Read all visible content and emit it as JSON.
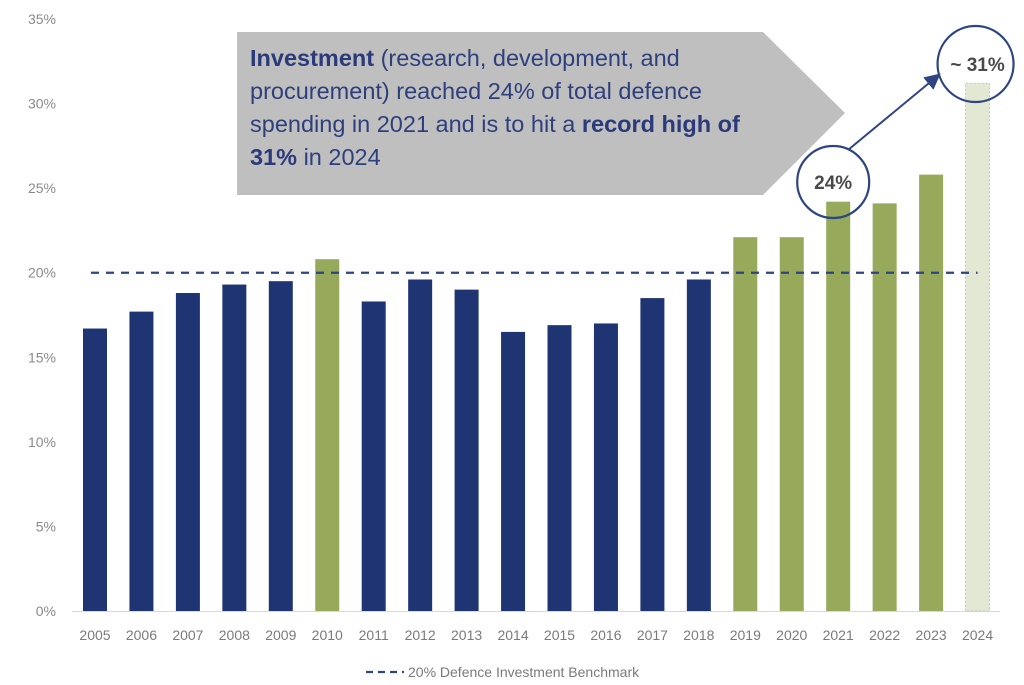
{
  "chart_data": {
    "type": "bar",
    "title": "",
    "xlabel": "",
    "ylabel": "",
    "ylim": [
      0,
      35
    ],
    "y_ticks": [
      "0%",
      "5%",
      "10%",
      "15%",
      "20%",
      "25%",
      "30%",
      "35%"
    ],
    "y_tick_values": [
      0,
      5,
      10,
      15,
      20,
      25,
      30,
      35
    ],
    "categories": [
      "2005",
      "2006",
      "2007",
      "2008",
      "2009",
      "2010",
      "2011",
      "2012",
      "2013",
      "2014",
      "2015",
      "2016",
      "2017",
      "2018",
      "2019",
      "2020",
      "2021",
      "2022",
      "2023",
      "2024"
    ],
    "values": [
      16.7,
      17.7,
      18.8,
      19.3,
      19.5,
      20.8,
      18.3,
      19.6,
      19.0,
      16.5,
      16.9,
      17.0,
      18.5,
      19.6,
      22.1,
      22.1,
      24.2,
      24.1,
      25.8,
      31.2
    ],
    "bar_status": [
      "below",
      "below",
      "below",
      "below",
      "below",
      "above",
      "below",
      "below",
      "below",
      "below",
      "below",
      "below",
      "below",
      "below",
      "above",
      "above",
      "above",
      "above",
      "above",
      "estimate"
    ],
    "colors": {
      "below": "#1f3473",
      "above": "#97a95a",
      "estimate": "#e3e8d3",
      "benchmark": "#2e4483",
      "annotation": "#2e4483"
    },
    "benchmark": {
      "value": 20,
      "label": "20% Defence Investment Benchmark"
    },
    "legend": {
      "position": "bottom-center",
      "entries": [
        "20% Defence Investment Benchmark"
      ]
    },
    "grid": false,
    "annotations": [
      {
        "category": "2021",
        "label": "24%"
      },
      {
        "category": "2024",
        "label": "~ 31%"
      }
    ],
    "callout": {
      "bold_1": "Investment",
      "text_1": " (research, development, and procurement) reached 24% of total defence spending in 2021 and is to hit a ",
      "bold_2": "record high of 31%",
      "text_2": " in 2024"
    }
  }
}
